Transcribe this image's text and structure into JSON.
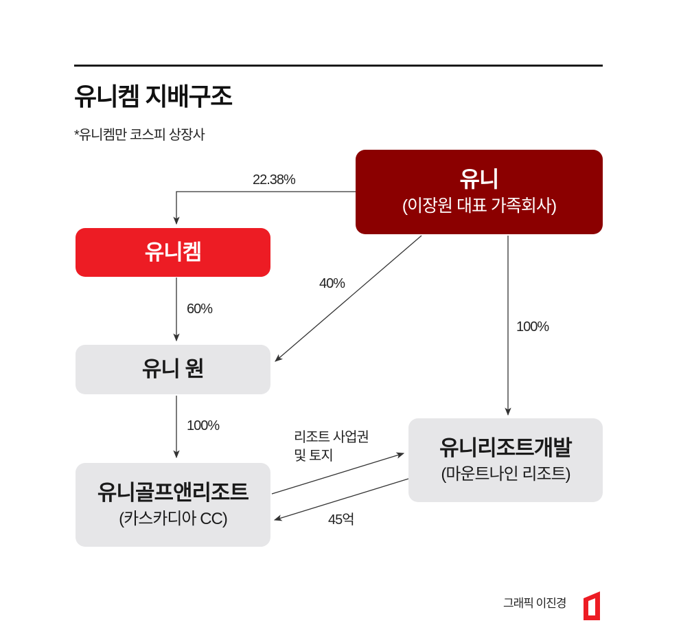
{
  "title": "유니켐 지배구조",
  "subtitle": "*유니켐만 코스피 상장사",
  "nodes": {
    "uni": {
      "name": "유니",
      "desc": "(이장원 대표 가족회사)"
    },
    "unichem": {
      "name": "유니켐"
    },
    "unione": {
      "name": "유니 원"
    },
    "golf": {
      "name": "유니골프앤리조트",
      "desc": "(카스카디아 CC)"
    },
    "resort_dev": {
      "name": "유니리조트개발",
      "desc": "(마운트나인 리조트)"
    }
  },
  "edges": {
    "uni_to_unichem": "22.38%",
    "uni_to_unione": "40%",
    "uni_to_resort_dev": "100%",
    "unichem_to_unione": "60%",
    "unione_to_golf": "100%",
    "golf_to_resort_dev": [
      "리조트 사업권",
      "및 토지"
    ],
    "resort_dev_to_golf": "45억"
  },
  "credit": "그래픽 이진경",
  "colors": {
    "uni": "#8b0000",
    "unichem": "#ed1c24",
    "neutral": "#e6e6e8",
    "arrow": "#333333"
  }
}
